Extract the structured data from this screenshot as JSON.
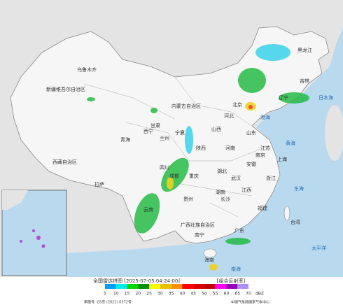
{
  "map": {
    "places": [
      "乌鲁木齐",
      "新疆维吾尔自治区",
      "西藏自治区",
      "青海",
      "甘肃",
      "内蒙古自治区",
      "黑龙江",
      "吉林",
      "辽宁",
      "北京",
      "河北",
      "山西",
      "山东",
      "河南",
      "江苏",
      "安徽",
      "上海",
      "浙江",
      "湖北",
      "陕西",
      "宁夏",
      "四川",
      "重庆",
      "贵州",
      "云南",
      "湖南",
      "江西",
      "福建",
      "广东",
      "广西壮族自治区",
      "台湾",
      "海南",
      "拉萨",
      "西宁",
      "兰州",
      "成都",
      "武汉",
      "南京",
      "长沙",
      "南宁"
    ],
    "seas": [
      "渤海",
      "黄海",
      "东海",
      "南海",
      "太平洋",
      "日本海"
    ]
  },
  "legend": {
    "title": "全国雷达拼图 [2025-07-05 04:24:00]",
    "product": "[组合反射率]",
    "unit": "dBZ",
    "ticks": [
      5,
      10,
      15,
      20,
      25,
      30,
      35,
      40,
      45,
      50,
      55,
      60,
      65,
      70
    ],
    "colors": [
      "#01a0f6",
      "#00ecec",
      "#00d800",
      "#019000",
      "#ffff00",
      "#e7c000",
      "#ff9000",
      "#ff0000",
      "#d60000",
      "#c00000",
      "#ff00f0",
      "#9600b4",
      "#ad90f0"
    ]
  },
  "footer": {
    "approval": "审图号: GS京 (2022) 0372号",
    "agency": "中国气象局国家气象中心"
  }
}
